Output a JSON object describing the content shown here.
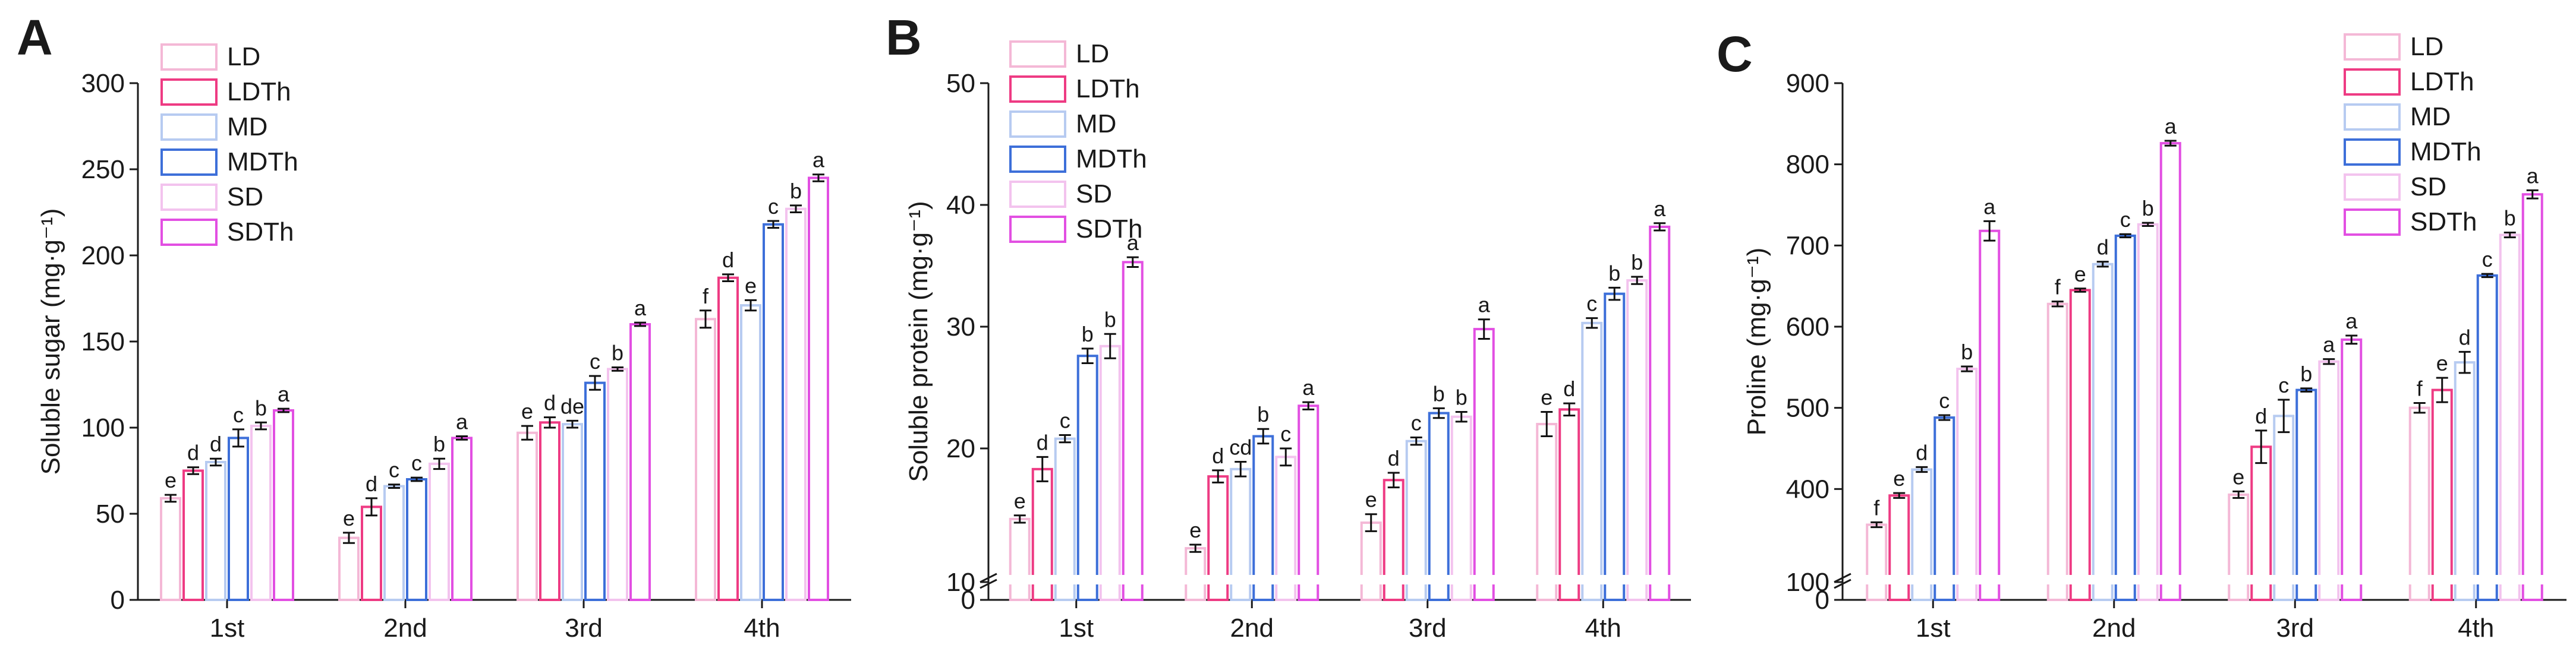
{
  "figure": {
    "series_meta": [
      {
        "name": "LD",
        "color": "#f4b8d6",
        "fill": "#ffffff"
      },
      {
        "name": "LDTh",
        "color": "#ee3b83",
        "fill": "#ffffff"
      },
      {
        "name": "MD",
        "color": "#b7cbf1",
        "fill": "#ffffff"
      },
      {
        "name": "MDTh",
        "color": "#3d6fd9",
        "fill": "#ffffff"
      },
      {
        "name": "SD",
        "color": "#f3c3ee",
        "fill": "#ffffff"
      },
      {
        "name": "SDTh",
        "color": "#e24fe2",
        "fill": "#ffffff"
      }
    ],
    "axis_color": "#1a1a1a",
    "break_symbol": "//"
  },
  "chart_data": [
    {
      "panel": "A",
      "type": "bar",
      "title": "",
      "xlabel": "",
      "ylabel": "Soluble sugar (mg·g⁻¹)",
      "ylim": [
        0,
        300
      ],
      "yticks": [
        "0",
        "50",
        "100",
        "150",
        "200",
        "250",
        "300"
      ],
      "categories": [
        "1st",
        "2nd",
        "3rd",
        "4th"
      ],
      "axis_break": null,
      "series": [
        {
          "name": "LD",
          "values": [
            59,
            36,
            97,
            163
          ],
          "errors": [
            2,
            3,
            4,
            5
          ],
          "letters": [
            "e",
            "e",
            "e",
            "f"
          ]
        },
        {
          "name": "LDTh",
          "values": [
            75,
            54,
            103,
            187
          ],
          "errors": [
            2,
            5,
            3,
            2
          ],
          "letters": [
            "d",
            "d",
            "d",
            "d"
          ]
        },
        {
          "name": "MD",
          "values": [
            80,
            66,
            102,
            171
          ],
          "errors": [
            2,
            1,
            2,
            3
          ],
          "letters": [
            "d",
            "c",
            "de",
            "e"
          ]
        },
        {
          "name": "MDTh",
          "values": [
            94,
            70,
            126,
            218
          ],
          "errors": [
            5,
            1,
            4,
            2
          ],
          "letters": [
            "c",
            "c",
            "c",
            "c"
          ]
        },
        {
          "name": "SD",
          "values": [
            101,
            79,
            134,
            227
          ],
          "errors": [
            2,
            3,
            1,
            2
          ],
          "letters": [
            "b",
            "b",
            "b",
            "b"
          ]
        },
        {
          "name": "SDTh",
          "values": [
            110,
            94,
            160,
            245
          ],
          "errors": [
            1,
            1,
            1,
            2
          ],
          "letters": [
            "a",
            "a",
            "a",
            "a"
          ]
        }
      ]
    },
    {
      "panel": "B",
      "type": "bar",
      "title": "",
      "xlabel": "",
      "ylabel": "Soluble protein (mg·g⁻¹)",
      "ylim": [
        0,
        50
      ],
      "yticks": [
        "0",
        "10",
        "20",
        "30",
        "40",
        "50"
      ],
      "categories": [
        "1st",
        "2nd",
        "3rd",
        "4th"
      ],
      "axis_break": [
        0,
        10
      ],
      "series": [
        {
          "name": "LD",
          "values": [
            14.2,
            11.8,
            13.9,
            22.0
          ],
          "errors": [
            0.3,
            0.3,
            0.7,
            1.0
          ],
          "letters": [
            "e",
            "e",
            "e",
            "e"
          ]
        },
        {
          "name": "LDTh",
          "values": [
            18.3,
            17.7,
            17.4,
            23.2
          ],
          "errors": [
            1.0,
            0.5,
            0.6,
            0.5
          ],
          "letters": [
            "d",
            "d",
            "d",
            "d"
          ]
        },
        {
          "name": "MD",
          "values": [
            20.8,
            18.3,
            20.6,
            30.3
          ],
          "errors": [
            0.3,
            0.6,
            0.3,
            0.4
          ],
          "letters": [
            "c",
            "cd",
            "c",
            "c"
          ]
        },
        {
          "name": "MDTh",
          "values": [
            27.6,
            21.0,
            22.9,
            32.7
          ],
          "errors": [
            0.6,
            0.6,
            0.4,
            0.5
          ],
          "letters": [
            "b",
            "b",
            "b",
            "b"
          ]
        },
        {
          "name": "SD",
          "values": [
            28.4,
            19.3,
            22.6,
            33.8
          ],
          "errors": [
            1.0,
            0.7,
            0.4,
            0.3
          ],
          "letters": [
            "b",
            "c",
            "b",
            "b"
          ]
        },
        {
          "name": "SDTh",
          "values": [
            35.3,
            23.5,
            29.8,
            38.2
          ],
          "errors": [
            0.4,
            0.3,
            0.8,
            0.3
          ],
          "letters": [
            "a",
            "a",
            "a",
            "a"
          ]
        }
      ]
    },
    {
      "panel": "C",
      "type": "bar",
      "title": "",
      "xlabel": "",
      "ylabel": "Proline (mg·g⁻¹)",
      "ylim": [
        0,
        900
      ],
      "yticks": [
        "0",
        "100",
        "400",
        "500",
        "600",
        "700",
        "800",
        "900"
      ],
      "categories": [
        "1st",
        "2nd",
        "3rd",
        "4th"
      ],
      "axis_break": [
        0,
        100
      ],
      "series": [
        {
          "name": "LD",
          "values": [
            356,
            628,
            393,
            500
          ],
          "errors": [
            3,
            3,
            4,
            6
          ],
          "letters": [
            "f",
            "f",
            "e",
            "f"
          ]
        },
        {
          "name": "LDTh",
          "values": [
            392,
            645,
            452,
            522
          ],
          "errors": [
            3,
            2,
            20,
            15
          ],
          "letters": [
            "e",
            "e",
            "d",
            "e"
          ]
        },
        {
          "name": "MD",
          "values": [
            424,
            677,
            490,
            556
          ],
          "errors": [
            3,
            3,
            20,
            13
          ],
          "letters": [
            "d",
            "d",
            "c",
            "d"
          ]
        },
        {
          "name": "MDTh",
          "values": [
            488,
            712,
            522,
            663
          ],
          "errors": [
            3,
            2,
            2,
            2
          ],
          "letters": [
            "c",
            "c",
            "b",
            "c"
          ]
        },
        {
          "name": "SD",
          "values": [
            548,
            726,
            557,
            713
          ],
          "errors": [
            3,
            2,
            3,
            3
          ],
          "letters": [
            "b",
            "b",
            "a",
            "b"
          ]
        },
        {
          "name": "SDTh",
          "values": [
            718,
            826,
            584,
            763
          ],
          "errors": [
            12,
            3,
            5,
            5
          ],
          "letters": [
            "a",
            "a",
            "a",
            "a"
          ]
        }
      ]
    }
  ]
}
